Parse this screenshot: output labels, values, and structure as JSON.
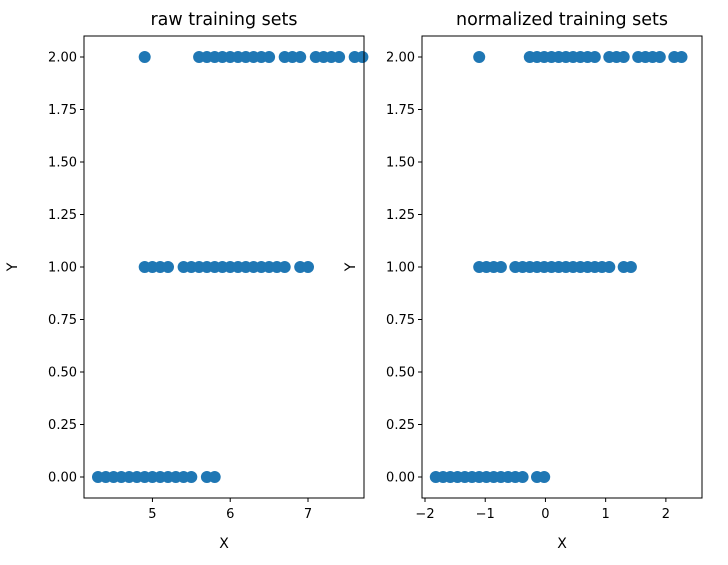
{
  "chart_data": [
    {
      "type": "scatter",
      "title": "raw training sets",
      "xlabel": "X",
      "ylabel": "Y",
      "xlim": [
        4.12,
        7.72
      ],
      "ylim": [
        -0.1,
        2.1
      ],
      "xticks": [
        5,
        6,
        7
      ],
      "xtick_labels": [
        "5",
        "6",
        "7"
      ],
      "yticks": [
        0,
        0.25,
        0.5,
        0.75,
        1,
        1.25,
        1.5,
        1.75,
        2
      ],
      "ytick_labels": [
        "0.00",
        "0.25",
        "0.50",
        "0.75",
        "1.00",
        "1.25",
        "1.50",
        "1.75",
        "2.00"
      ],
      "color": "#1f77b4",
      "grid": false,
      "points": [
        [
          4.3,
          0
        ],
        [
          4.4,
          0
        ],
        [
          4.5,
          0
        ],
        [
          4.6,
          0
        ],
        [
          4.7,
          0
        ],
        [
          4.8,
          0
        ],
        [
          4.9,
          0
        ],
        [
          5.0,
          0
        ],
        [
          5.1,
          0
        ],
        [
          5.2,
          0
        ],
        [
          5.3,
          0
        ],
        [
          5.4,
          0
        ],
        [
          5.5,
          0
        ],
        [
          5.7,
          0
        ],
        [
          5.8,
          0
        ],
        [
          4.9,
          1
        ],
        [
          5.0,
          1
        ],
        [
          5.1,
          1
        ],
        [
          5.2,
          1
        ],
        [
          5.4,
          1
        ],
        [
          5.5,
          1
        ],
        [
          5.6,
          1
        ],
        [
          5.7,
          1
        ],
        [
          5.8,
          1
        ],
        [
          5.9,
          1
        ],
        [
          6.0,
          1
        ],
        [
          6.1,
          1
        ],
        [
          6.2,
          1
        ],
        [
          6.3,
          1
        ],
        [
          6.4,
          1
        ],
        [
          6.5,
          1
        ],
        [
          6.6,
          1
        ],
        [
          6.7,
          1
        ],
        [
          6.9,
          1
        ],
        [
          7.0,
          1
        ],
        [
          4.9,
          2
        ],
        [
          5.6,
          2
        ],
        [
          5.7,
          2
        ],
        [
          5.8,
          2
        ],
        [
          5.9,
          2
        ],
        [
          6.0,
          2
        ],
        [
          6.1,
          2
        ],
        [
          6.2,
          2
        ],
        [
          6.3,
          2
        ],
        [
          6.4,
          2
        ],
        [
          6.5,
          2
        ],
        [
          6.7,
          2
        ],
        [
          6.8,
          2
        ],
        [
          6.9,
          2
        ],
        [
          7.1,
          2
        ],
        [
          7.2,
          2
        ],
        [
          7.3,
          2
        ],
        [
          7.4,
          2
        ],
        [
          7.6,
          2
        ],
        [
          7.7,
          2
        ]
      ]
    },
    {
      "type": "scatter",
      "title": "normalized training sets",
      "xlabel": "X",
      "ylabel": "Y",
      "xlim": [
        -2.05,
        2.6
      ],
      "ylim": [
        -0.1,
        2.1
      ],
      "xticks": [
        -2,
        -1,
        0,
        1,
        2
      ],
      "xtick_labels": [
        "−2",
        "−1",
        "0",
        "1",
        "2"
      ],
      "yticks": [
        0,
        0.25,
        0.5,
        0.75,
        1,
        1.25,
        1.5,
        1.75,
        2
      ],
      "ytick_labels": [
        "0.00",
        "0.25",
        "0.50",
        "0.75",
        "1.00",
        "1.25",
        "1.50",
        "1.75",
        "2.00"
      ],
      "color": "#1f77b4",
      "grid": false,
      "points": [
        [
          -1.82,
          0
        ],
        [
          -1.7,
          0
        ],
        [
          -1.58,
          0
        ],
        [
          -1.46,
          0
        ],
        [
          -1.34,
          0
        ],
        [
          -1.22,
          0
        ],
        [
          -1.1,
          0
        ],
        [
          -0.98,
          0
        ],
        [
          -0.86,
          0
        ],
        [
          -0.74,
          0
        ],
        [
          -0.62,
          0
        ],
        [
          -0.5,
          0
        ],
        [
          -0.38,
          0
        ],
        [
          -0.14,
          0
        ],
        [
          -0.02,
          0
        ],
        [
          -1.1,
          1
        ],
        [
          -0.98,
          1
        ],
        [
          -0.86,
          1
        ],
        [
          -0.74,
          1
        ],
        [
          -0.5,
          1
        ],
        [
          -0.38,
          1
        ],
        [
          -0.26,
          1
        ],
        [
          -0.14,
          1
        ],
        [
          -0.02,
          1
        ],
        [
          0.1,
          1
        ],
        [
          0.22,
          1
        ],
        [
          0.34,
          1
        ],
        [
          0.46,
          1
        ],
        [
          0.58,
          1
        ],
        [
          0.7,
          1
        ],
        [
          0.82,
          1
        ],
        [
          0.94,
          1
        ],
        [
          1.06,
          1
        ],
        [
          1.3,
          1
        ],
        [
          1.42,
          1
        ],
        [
          -1.1,
          2
        ],
        [
          -0.26,
          2
        ],
        [
          -0.14,
          2
        ],
        [
          -0.02,
          2
        ],
        [
          0.1,
          2
        ],
        [
          0.22,
          2
        ],
        [
          0.34,
          2
        ],
        [
          0.46,
          2
        ],
        [
          0.58,
          2
        ],
        [
          0.7,
          2
        ],
        [
          0.82,
          2
        ],
        [
          1.06,
          2
        ],
        [
          1.18,
          2
        ],
        [
          1.3,
          2
        ],
        [
          1.54,
          2
        ],
        [
          1.66,
          2
        ],
        [
          1.78,
          2
        ],
        [
          1.9,
          2
        ],
        [
          2.14,
          2
        ],
        [
          2.26,
          2
        ]
      ]
    }
  ]
}
